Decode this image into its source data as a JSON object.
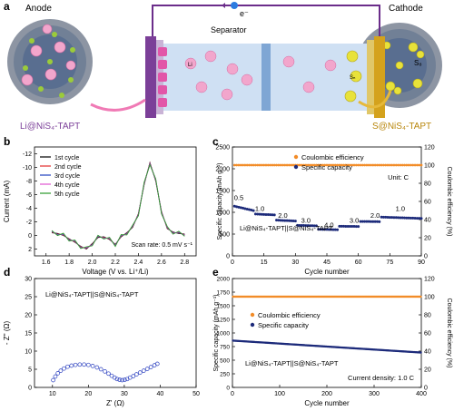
{
  "panel_labels": {
    "a": "a",
    "b": "b",
    "c": "c",
    "d": "d",
    "e": "e"
  },
  "schematic": {
    "anode_label": "Anode",
    "cathode_label": "Cathode",
    "separator_label": "Separator",
    "electron_label": "e⁻",
    "anode_material": "Li@NiS₄-TAPT",
    "cathode_material": "S@NiS₄-TAPT",
    "li_label": "Li",
    "sn_label": "Sₙ",
    "s8_label": "S₈",
    "colors": {
      "anode_bar": "#7b3f98",
      "cathode_bar": "#d4a21c",
      "li_ball": "#f2a6cc",
      "sulfur": "#e8e23a",
      "separator": "#a9c6e8",
      "wire": "#6b2d8a"
    }
  },
  "chart_data": [
    {
      "panel": "b",
      "type": "line",
      "xlabel": "Voltage (V vs. Li⁺/Li)",
      "ylabel": "Current (mA)",
      "xlim": [
        1.5,
        2.9
      ],
      "ylim": [
        -13,
        3
      ],
      "y_reversed": true,
      "x_ticks": [
        "1.6",
        "1.8",
        "2.0",
        "2.2",
        "2.4",
        "2.6",
        "2.8"
      ],
      "y_ticks": [
        "-12",
        "-10",
        "-8",
        "-6",
        "-4",
        "-2",
        "0",
        "2"
      ],
      "annotation": "Scan rate: 0.5 mV s⁻¹",
      "legend": [
        "1st cycle",
        "2nd cycle",
        "3rd cycle",
        "4th cycle",
        "5th cycle"
      ],
      "series": [
        {
          "name": "1st cycle",
          "color": "#000000"
        },
        {
          "name": "2nd cycle",
          "color": "#e32b2b"
        },
        {
          "name": "3rd cycle",
          "color": "#1f3fbf"
        },
        {
          "name": "4th cycle",
          "color": "#e055d0"
        },
        {
          "name": "5th cycle",
          "color": "#2a9a2a"
        }
      ],
      "curve": {
        "x": [
          1.65,
          1.7,
          1.75,
          1.8,
          1.85,
          1.9,
          1.95,
          2.0,
          2.05,
          2.1,
          2.15,
          2.2,
          2.25,
          2.3,
          2.35,
          2.4,
          2.45,
          2.5,
          2.55,
          2.6,
          2.65,
          2.7,
          2.75,
          2.8
        ],
        "y": [
          -0.4,
          -0.3,
          0.0,
          0.5,
          1.0,
          1.6,
          2.0,
          1.2,
          0.3,
          0.2,
          0.6,
          1.3,
          0.2,
          -0.4,
          -1.2,
          -3.2,
          -7.5,
          -10.7,
          -8.0,
          -3.5,
          -1.0,
          -0.5,
          -0.3,
          -0.2
        ]
      }
    },
    {
      "panel": "c",
      "type": "scatter",
      "xlabel": "Cycle number",
      "ylabel": "Specific capacity (mAh g⁻¹)",
      "y2label": "Coulombic efficiency (%)",
      "xlim": [
        0,
        90
      ],
      "ylim": [
        0,
        2500
      ],
      "y2lim": [
        0,
        120
      ],
      "x_ticks": [
        "0",
        "15",
        "30",
        "45",
        "60",
        "75",
        "90"
      ],
      "y_ticks": [
        "0",
        "500",
        "1000",
        "1500",
        "2000",
        "2500"
      ],
      "y2_ticks": [
        "0",
        "20",
        "40",
        "60",
        "80",
        "100",
        "120"
      ],
      "legend": [
        "Coulombic efficiency",
        "Specific capacity"
      ],
      "unit_note": "Unit: C",
      "cell_label": "Li@NiS₄-TAPT||S@NiS₄-TAPT",
      "rate_labels": [
        {
          "x": 3,
          "y": 1280,
          "t": "0.5"
        },
        {
          "x": 13,
          "y": 1030,
          "t": "1.0"
        },
        {
          "x": 24,
          "y": 880,
          "t": "2.0"
        },
        {
          "x": 35,
          "y": 760,
          "t": "3.0"
        },
        {
          "x": 46,
          "y": 660,
          "t": "4.0"
        },
        {
          "x": 58,
          "y": 760,
          "t": "3.0"
        },
        {
          "x": 68,
          "y": 880,
          "t": "2.0"
        },
        {
          "x": 80,
          "y": 1030,
          "t": "1.0"
        }
      ],
      "capacity_segments": [
        {
          "from": 1,
          "to": 10,
          "start": 1140,
          "end": 1040
        },
        {
          "from": 11,
          "to": 20,
          "start": 960,
          "end": 940
        },
        {
          "from": 21,
          "to": 30,
          "start": 820,
          "end": 800
        },
        {
          "from": 31,
          "to": 40,
          "start": 700,
          "end": 690
        },
        {
          "from": 41,
          "to": 50,
          "start": 610,
          "end": 600
        },
        {
          "from": 51,
          "to": 60,
          "start": 680,
          "end": 675
        },
        {
          "from": 61,
          "to": 70,
          "start": 790,
          "end": 785
        },
        {
          "from": 71,
          "to": 90,
          "start": 890,
          "end": 860
        }
      ],
      "ce_value": 100,
      "colors": {
        "capacity": "#1c2a7a",
        "ce": "#f28c28"
      }
    },
    {
      "panel": "d",
      "type": "scatter",
      "xlabel": "Z' (Ω)",
      "ylabel": "- Z'' (Ω)",
      "xlim": [
        5,
        50
      ],
      "ylim": [
        0,
        30
      ],
      "x_ticks": [
        "10",
        "20",
        "30",
        "40",
        "50"
      ],
      "y_ticks": [
        "0",
        "5",
        "10",
        "15",
        "20",
        "25",
        "30"
      ],
      "cell_label": "Li@NiS₄-TAPT||S@NiS₄-TAPT",
      "x": [
        10.2,
        10.8,
        11.5,
        12.3,
        13.2,
        14.2,
        15.3,
        16.4,
        17.6,
        18.8,
        20.0,
        21.2,
        22.4,
        23.5,
        24.6,
        25.6,
        26.5,
        27.3,
        28.0,
        28.7,
        29.4,
        30.1,
        30.8,
        31.6,
        32.5,
        33.4,
        34.4,
        35.4,
        36.4,
        37.4,
        38.4,
        39.2
      ],
      "y": [
        2.0,
        3.0,
        3.9,
        4.6,
        5.2,
        5.7,
        6.0,
        6.2,
        6.3,
        6.3,
        6.2,
        5.9,
        5.5,
        5.0,
        4.4,
        3.8,
        3.2,
        2.7,
        2.3,
        2.1,
        2.0,
        2.1,
        2.3,
        2.7,
        3.1,
        3.6,
        4.1,
        4.6,
        5.1,
        5.6,
        6.1,
        6.5
      ],
      "color": "#2a3fbf"
    },
    {
      "panel": "e",
      "type": "scatter",
      "xlabel": "Cycle number",
      "ylabel": "Specific capacity (mAh g⁻¹)",
      "y2label": "Coulombic efficiency (%)",
      "xlim": [
        0,
        400
      ],
      "ylim": [
        0,
        2000
      ],
      "y2lim": [
        0,
        120
      ],
      "x_ticks": [
        "0",
        "100",
        "200",
        "300",
        "400"
      ],
      "y_ticks": [
        "0",
        "250",
        "500",
        "750",
        "1000",
        "1250",
        "1500",
        "1750",
        "2000"
      ],
      "y2_ticks": [
        "0",
        "20",
        "40",
        "60",
        "80",
        "100",
        "120"
      ],
      "legend": [
        "Coulombic efficiency",
        "Specific capacity"
      ],
      "cell_label": "Li@NiS₄-TAPT||S@NiS₄-TAPT",
      "current_note": "Current density: 1.0 C",
      "capacity_start": 860,
      "capacity_end": 640,
      "ce_value": 100,
      "colors": {
        "capacity": "#1c2a7a",
        "ce": "#f28c28"
      }
    }
  ]
}
